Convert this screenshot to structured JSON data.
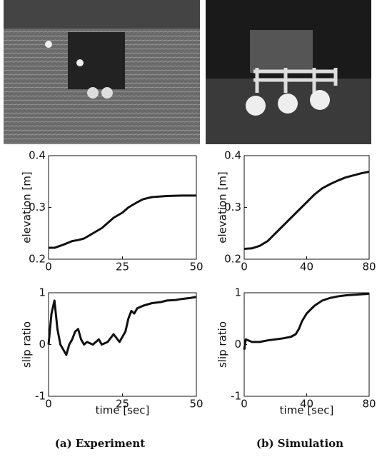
{
  "chart_data": [
    {
      "type": "line",
      "ylabel": "elevation [m]",
      "xlim": [
        0,
        50
      ],
      "xticks": [
        0,
        25,
        50
      ],
      "ylim": [
        0.2,
        0.4
      ],
      "yticks": [
        0.2,
        0.3,
        0.4
      ],
      "color": "#111111",
      "x": [
        0,
        2,
        5,
        8,
        10,
        12,
        15,
        18,
        20,
        22,
        25,
        27,
        30,
        32,
        35,
        40,
        45,
        50
      ],
      "values": [
        0.222,
        0.222,
        0.228,
        0.235,
        0.237,
        0.24,
        0.25,
        0.26,
        0.27,
        0.28,
        0.29,
        0.3,
        0.31,
        0.316,
        0.32,
        0.322,
        0.323,
        0.323
      ]
    },
    {
      "type": "line",
      "ylabel": "elevation [m]",
      "xlim": [
        0,
        80
      ],
      "xticks": [
        0,
        40,
        80
      ],
      "ylim": [
        0.2,
        0.4
      ],
      "yticks": [
        0.2,
        0.3,
        0.4
      ],
      "color": "#111111",
      "x": [
        0,
        5,
        10,
        15,
        20,
        25,
        30,
        35,
        40,
        45,
        50,
        55,
        60,
        65,
        70,
        75,
        80
      ],
      "values": [
        0.22,
        0.221,
        0.226,
        0.235,
        0.25,
        0.265,
        0.28,
        0.295,
        0.31,
        0.325,
        0.337,
        0.345,
        0.352,
        0.358,
        0.362,
        0.366,
        0.369
      ]
    },
    {
      "type": "line",
      "ylabel": "slip ratio",
      "xlabel": "time [sec]",
      "xlim": [
        0,
        50
      ],
      "xticks": [
        0,
        25,
        50
      ],
      "ylim": [
        -1,
        1
      ],
      "yticks": [
        -1,
        0,
        1
      ],
      "color": "#111111",
      "x": [
        0,
        1,
        2,
        3,
        4,
        5,
        6,
        7,
        8,
        9,
        10,
        11,
        12,
        13,
        15,
        17,
        18,
        20,
        22,
        24,
        25,
        26,
        27,
        28,
        29,
        30,
        32,
        35,
        38,
        40,
        43,
        45,
        48,
        50
      ],
      "values": [
        0,
        0.6,
        0.85,
        0.3,
        0,
        -0.1,
        -0.2,
        0,
        0.1,
        0.25,
        0.3,
        0.1,
        0,
        0.05,
        0,
        0.1,
        0,
        0.05,
        0.2,
        0.05,
        0.15,
        0.25,
        0.5,
        0.65,
        0.6,
        0.7,
        0.75,
        0.8,
        0.82,
        0.85,
        0.86,
        0.88,
        0.9,
        0.92
      ]
    },
    {
      "type": "line",
      "ylabel": "slip ratio",
      "xlabel": "time [sec]",
      "xlim": [
        0,
        80
      ],
      "xticks": [
        0,
        40,
        80
      ],
      "ylim": [
        -1,
        1
      ],
      "yticks": [
        -1,
        0,
        1
      ],
      "color": "#111111",
      "x": [
        0,
        1,
        5,
        10,
        15,
        20,
        25,
        30,
        33,
        35,
        37,
        40,
        45,
        50,
        55,
        60,
        65,
        70,
        75,
        80
      ],
      "values": [
        -0.1,
        0.1,
        0.05,
        0.05,
        0.08,
        0.1,
        0.12,
        0.15,
        0.2,
        0.3,
        0.45,
        0.6,
        0.75,
        0.85,
        0.9,
        0.93,
        0.95,
        0.96,
        0.97,
        0.98
      ]
    }
  ],
  "captions": [
    "(a) Experiment",
    "(b) Simulation"
  ]
}
